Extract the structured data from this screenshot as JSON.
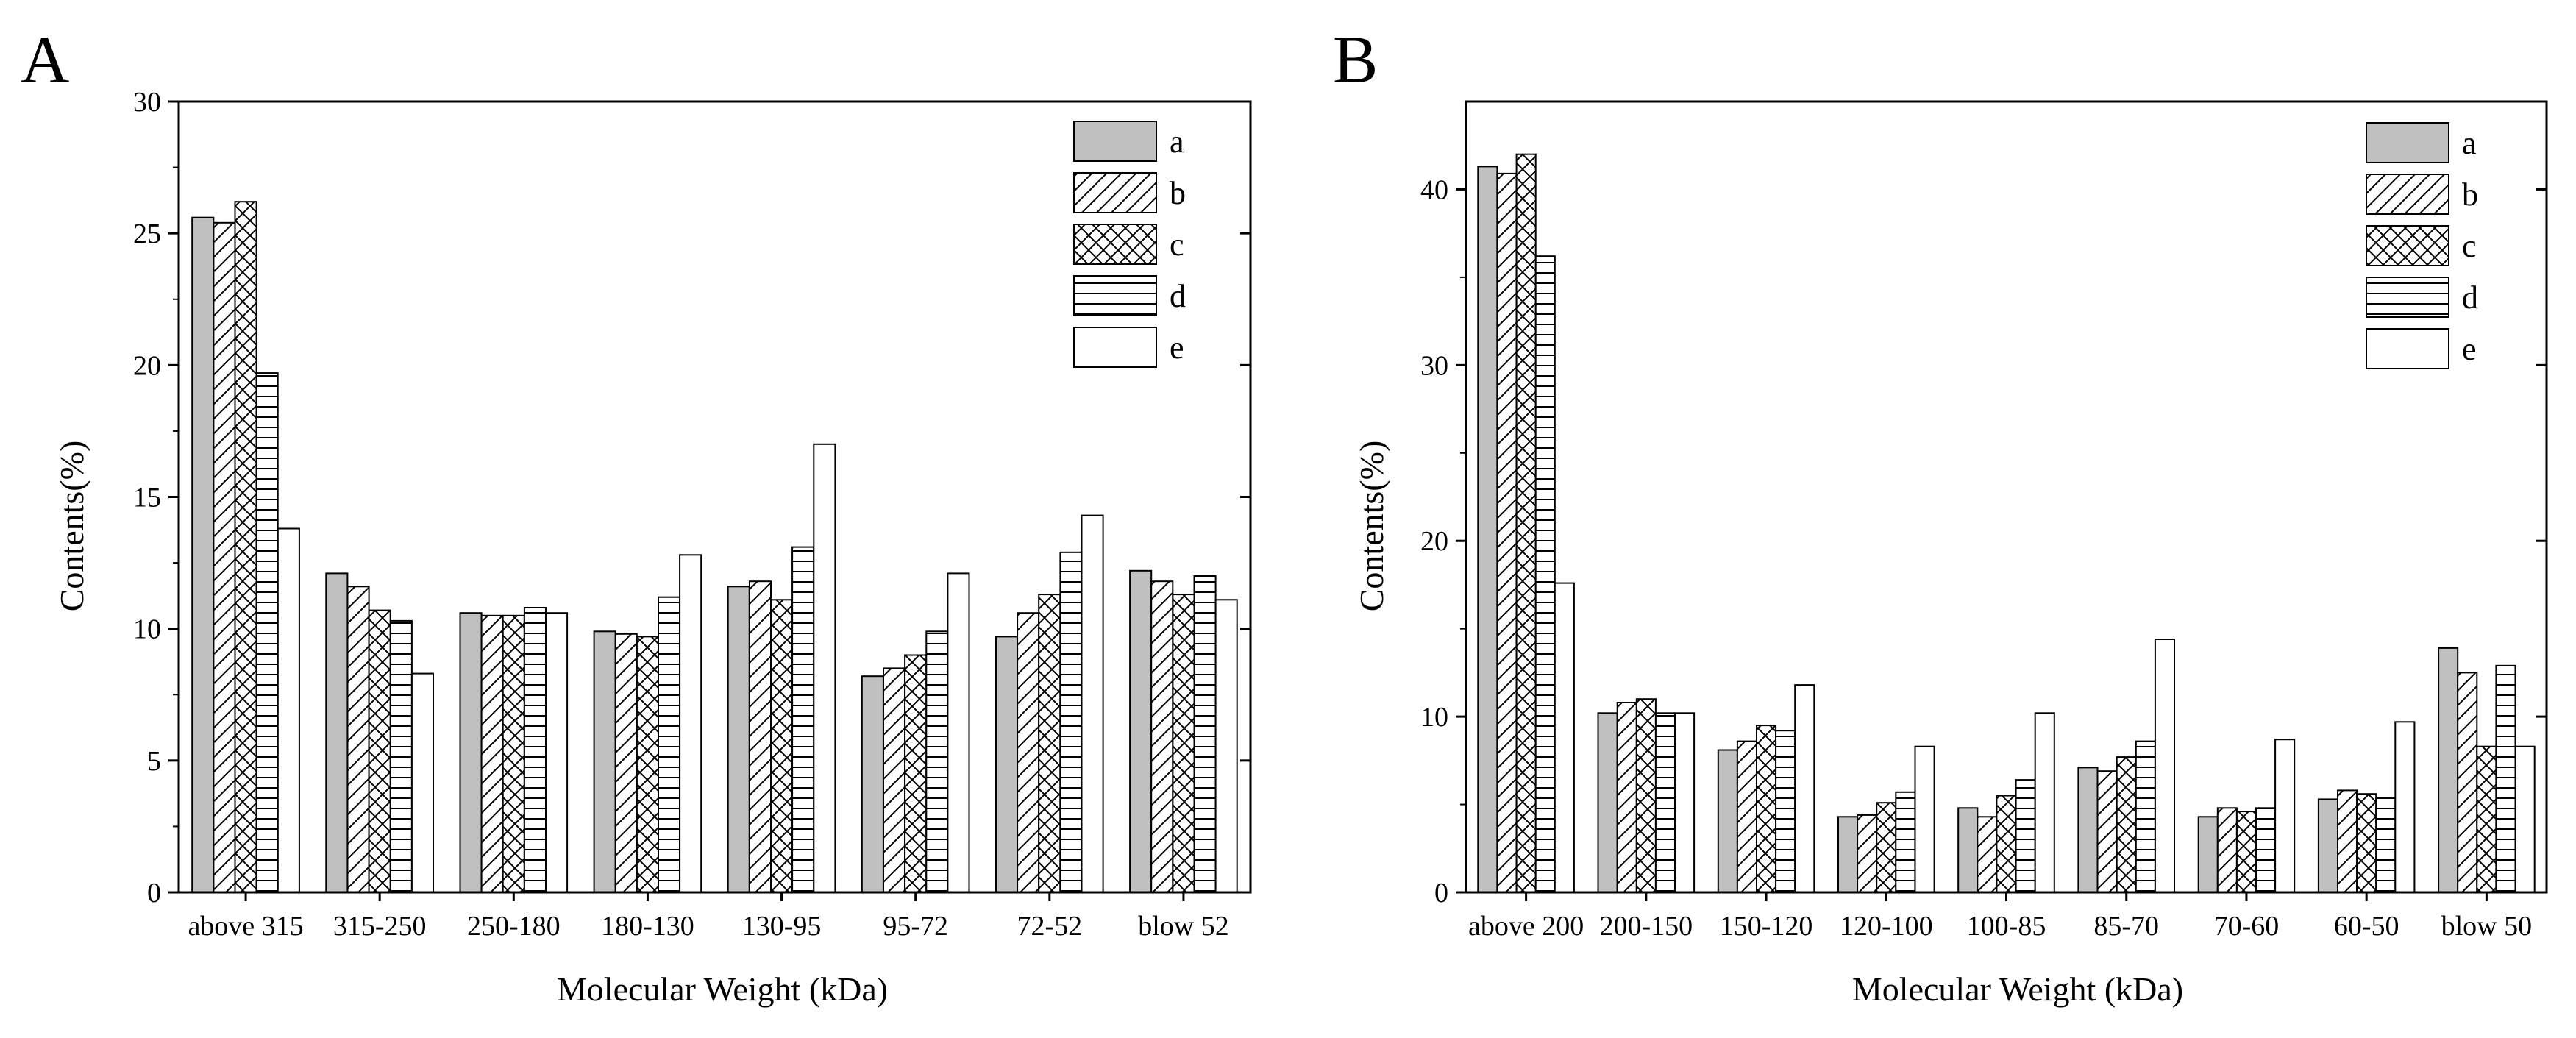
{
  "colors": {
    "a_fill": "#c0c0c0",
    "stroke": "#000000",
    "background": "#ffffff"
  },
  "legend": [
    "a",
    "b",
    "c",
    "d",
    "e"
  ],
  "chart_data": [
    {
      "panel": "A",
      "type": "bar",
      "xlabel": "Molecular Weight (kDa)",
      "ylabel": "Contents(%)",
      "ylim": [
        0,
        30
      ],
      "yticks": [
        0,
        5,
        10,
        15,
        20,
        25,
        30
      ],
      "legend_position": "top-right",
      "categories": [
        "above 315",
        "315-250",
        "250-180",
        "180-130",
        "130-95",
        "95-72",
        "72-52",
        "blow 52"
      ],
      "series": [
        {
          "name": "a",
          "values": [
            25.6,
            12.1,
            10.6,
            9.9,
            11.6,
            8.2,
            9.7,
            12.2
          ]
        },
        {
          "name": "b",
          "values": [
            25.4,
            11.6,
            10.5,
            9.8,
            11.8,
            8.5,
            10.6,
            11.8
          ]
        },
        {
          "name": "c",
          "values": [
            26.2,
            10.7,
            10.5,
            9.7,
            11.1,
            9.0,
            11.3,
            11.3
          ]
        },
        {
          "name": "d",
          "values": [
            19.7,
            10.3,
            10.8,
            11.2,
            13.1,
            9.9,
            12.9,
            12.0
          ]
        },
        {
          "name": "e",
          "values": [
            13.8,
            8.3,
            10.6,
            12.8,
            17.0,
            12.1,
            14.3,
            11.1
          ]
        }
      ]
    },
    {
      "panel": "B",
      "type": "bar",
      "xlabel": "Molecular Weight (kDa)",
      "ylabel": "Contents(%)",
      "ylim": [
        0,
        45
      ],
      "yticks": [
        0,
        10,
        20,
        30,
        40
      ],
      "legend_position": "top-right",
      "categories": [
        "above 200",
        "200-150",
        "150-120",
        "120-100",
        "100-85",
        "85-70",
        "70-60",
        "60-50",
        "blow 50"
      ],
      "series": [
        {
          "name": "a",
          "values": [
            41.3,
            10.2,
            8.1,
            4.3,
            4.8,
            7.1,
            4.3,
            5.3,
            13.9
          ]
        },
        {
          "name": "b",
          "values": [
            40.9,
            10.8,
            8.6,
            4.4,
            4.3,
            6.9,
            4.8,
            5.8,
            12.5
          ]
        },
        {
          "name": "c",
          "values": [
            42.0,
            11.0,
            9.5,
            5.1,
            5.5,
            7.7,
            4.6,
            5.6,
            8.3
          ]
        },
        {
          "name": "d",
          "values": [
            36.2,
            10.2,
            9.2,
            5.7,
            6.4,
            8.6,
            4.8,
            5.4,
            12.9
          ]
        },
        {
          "name": "e",
          "values": [
            17.6,
            10.2,
            11.8,
            8.3,
            10.2,
            14.4,
            8.7,
            9.7,
            8.3
          ]
        }
      ]
    }
  ]
}
